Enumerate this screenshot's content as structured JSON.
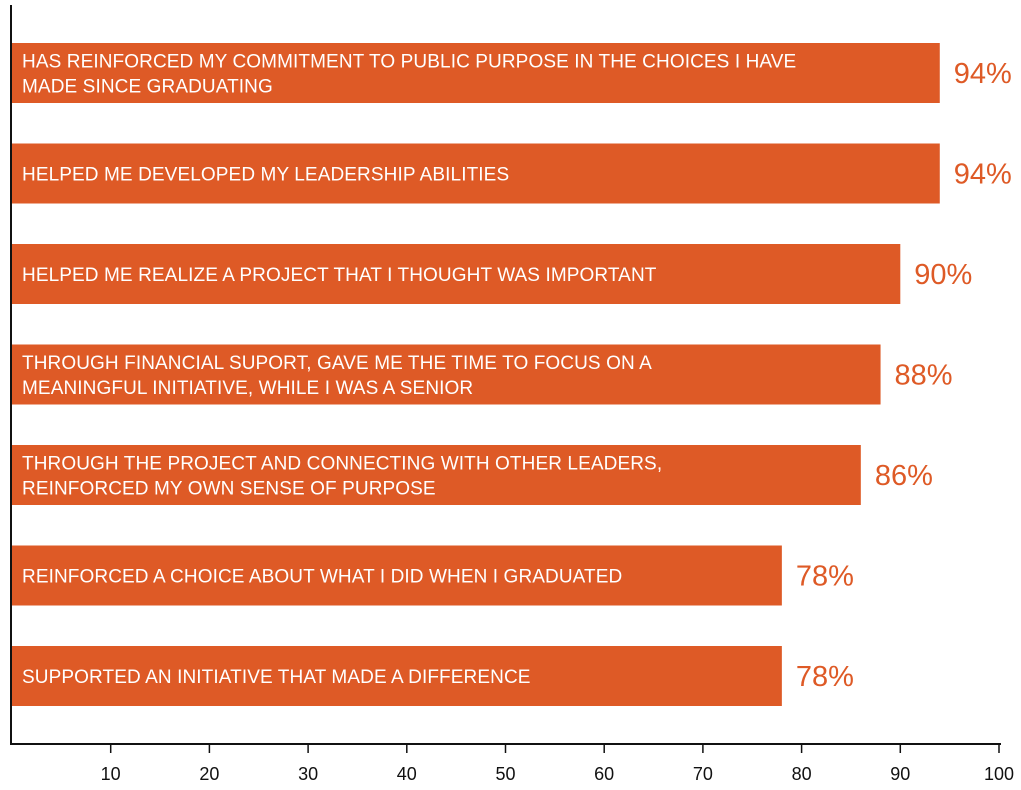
{
  "chart_data": {
    "type": "bar",
    "orientation": "horizontal",
    "bar_color": "#de5a26",
    "value_label_color": "#de5a26",
    "xlim": [
      0,
      100
    ],
    "x_ticks": [
      10,
      20,
      30,
      40,
      50,
      60,
      70,
      80,
      90,
      100
    ],
    "grid": false,
    "categories": [
      [
        "HAS REINFORCED MY COMMITMENT TO PUBLIC PURPOSE IN THE CHOICES I HAVE",
        "MADE SINCE GRADUATING"
      ],
      [
        "HELPED ME DEVELOPED MY LEADERSHIP ABILITIES"
      ],
      [
        "HELPED ME REALIZE A PROJECT THAT I THOUGHT WAS IMPORTANT"
      ],
      [
        "THROUGH FINANCIAL SUPORT, GAVE ME THE TIME TO FOCUS ON A",
        "MEANINGFUL INITIATIVE, WHILE I WAS A SENIOR"
      ],
      [
        "THROUGH THE PROJECT AND CONNECTING WITH OTHER LEADERS,",
        "REINFORCED MY OWN SENSE OF PURPOSE"
      ],
      [
        "REINFORCED A CHOICE ABOUT WHAT I DID WHEN I GRADUATED"
      ],
      [
        "SUPPORTED AN INITIATIVE THAT MADE A DIFFERENCE"
      ]
    ],
    "values": [
      94,
      94,
      90,
      88,
      86,
      78,
      78
    ],
    "value_labels": [
      "94%",
      "94%",
      "90%",
      "88%",
      "86%",
      "78%",
      "78%"
    ]
  }
}
